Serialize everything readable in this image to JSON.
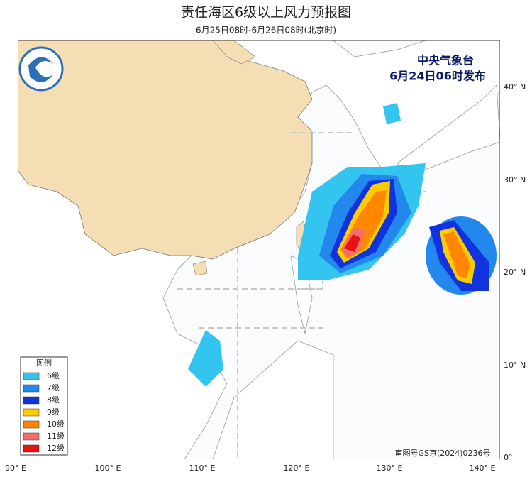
{
  "header": {
    "title": "责任海区6级以上风力预报图",
    "subtitle": "6月25日08时-6月26日08时(北京时)"
  },
  "issuer": {
    "agency": "中央气象台",
    "issued": "6月24日06时发布"
  },
  "axes": {
    "longitude": [
      "90° E",
      "100° E",
      "110° E",
      "120° E",
      "130° E",
      "140° E"
    ],
    "latitude": [
      "40° N",
      "30° N",
      "20° N",
      "10° N",
      "0°"
    ]
  },
  "legend": {
    "title": "图例",
    "items": [
      {
        "label": "6级",
        "color": "#33c4f0"
      },
      {
        "label": "7级",
        "color": "#2288ee"
      },
      {
        "label": "8级",
        "color": "#1133dd"
      },
      {
        "label": "9级",
        "color": "#ffcc00"
      },
      {
        "label": "10级",
        "color": "#ff8800"
      },
      {
        "label": "11级",
        "color": "#f07070"
      },
      {
        "label": "12级",
        "color": "#e81010"
      }
    ]
  },
  "approval": "审图号GS京(2024)0236号"
}
